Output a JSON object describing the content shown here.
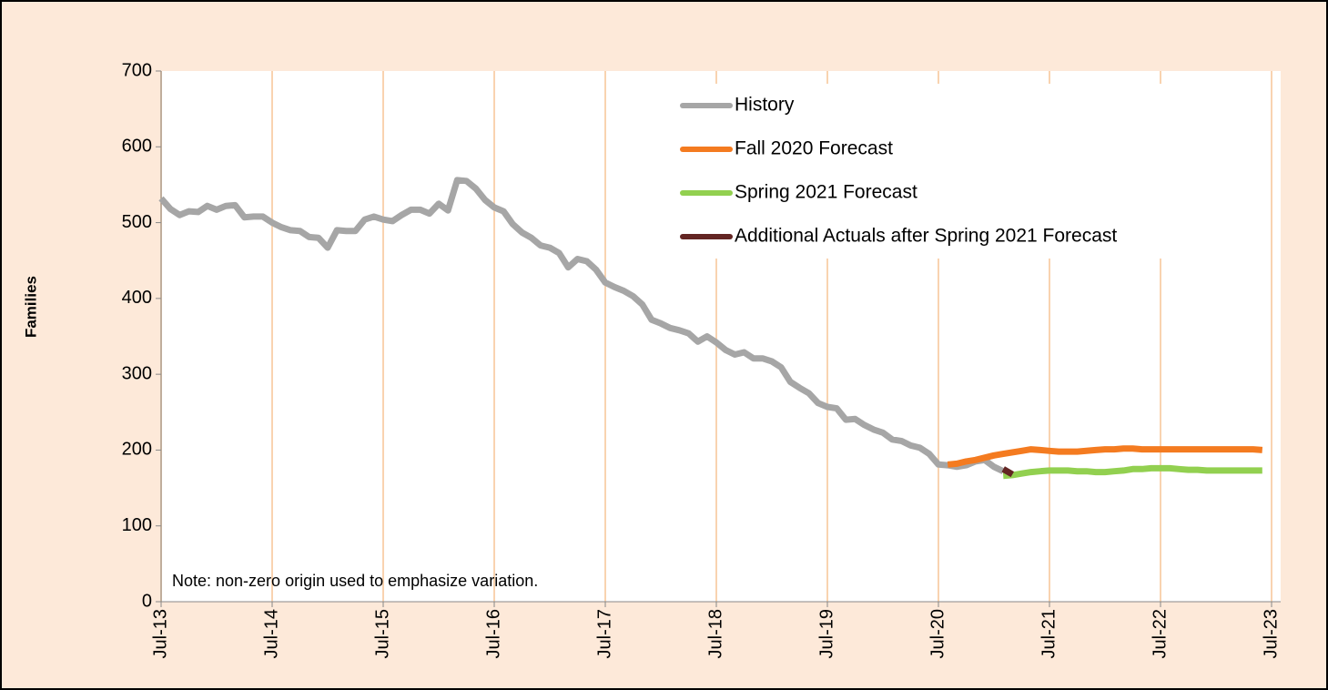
{
  "chart_data": {
    "type": "line",
    "y_label": "Families",
    "annotation": "Note: non-zero origin used to emphasize variation.",
    "categories": [
      "Jul-13",
      null,
      null,
      null,
      null,
      null,
      null,
      null,
      null,
      null,
      null,
      null,
      "Jul-14",
      null,
      null,
      null,
      null,
      null,
      null,
      null,
      null,
      null,
      null,
      null,
      "Jul-15",
      null,
      null,
      null,
      null,
      null,
      null,
      null,
      null,
      null,
      null,
      null,
      "Jul-16",
      null,
      null,
      null,
      null,
      null,
      null,
      null,
      null,
      null,
      null,
      null,
      "Jul-17",
      null,
      null,
      null,
      null,
      null,
      null,
      null,
      null,
      null,
      null,
      null,
      "Jul-18",
      null,
      null,
      null,
      null,
      null,
      null,
      null,
      null,
      null,
      null,
      null,
      "Jul-19",
      null,
      null,
      null,
      null,
      null,
      null,
      null,
      null,
      null,
      null,
      null,
      "Jul-20",
      null,
      null,
      null,
      null,
      null,
      null,
      null,
      null,
      null,
      null,
      null,
      "Jul-21",
      null,
      null,
      null,
      null,
      null,
      null,
      null,
      null,
      null,
      null,
      null,
      "Jul-22",
      null,
      null,
      null,
      null,
      null,
      null,
      null,
      null,
      null,
      null,
      null,
      "Jul-23"
    ],
    "ylim": [
      0,
      700
    ],
    "yticks": [
      0,
      100,
      200,
      300,
      400,
      500,
      600,
      700
    ],
    "grid": true,
    "series": [
      {
        "name": "History",
        "color": "#a6a6a6",
        "values": [
          532,
          518,
          510,
          515,
          514,
          522,
          517,
          522,
          523,
          507,
          508,
          508,
          500,
          494,
          490,
          489,
          481,
          480,
          467,
          490,
          489,
          489,
          504,
          508,
          504,
          502,
          510,
          517,
          517,
          512,
          525,
          516,
          556,
          555,
          545,
          530,
          520,
          515,
          498,
          487,
          480,
          470,
          467,
          460,
          441,
          452,
          449,
          438,
          421,
          415,
          410,
          403,
          392,
          372,
          367,
          361,
          358,
          354,
          343,
          350,
          342,
          332,
          326,
          329,
          321,
          321,
          317,
          309,
          290,
          282,
          275,
          262,
          257,
          255,
          240,
          241,
          233,
          227,
          223,
          214,
          212,
          206,
          203,
          195,
          181,
          180,
          178,
          180,
          185,
          187,
          178,
          172,
          null,
          null,
          null,
          null,
          null,
          null,
          null,
          null,
          null,
          null,
          null,
          null,
          null,
          null,
          null,
          null,
          null,
          null,
          null,
          null,
          null,
          null,
          null,
          null,
          null,
          null,
          null,
          null,
          null
        ]
      },
      {
        "name": "Fall 2020 Forecast",
        "color": "#f47b20",
        "values": [
          null,
          null,
          null,
          null,
          null,
          null,
          null,
          null,
          null,
          null,
          null,
          null,
          null,
          null,
          null,
          null,
          null,
          null,
          null,
          null,
          null,
          null,
          null,
          null,
          null,
          null,
          null,
          null,
          null,
          null,
          null,
          null,
          null,
          null,
          null,
          null,
          null,
          null,
          null,
          null,
          null,
          null,
          null,
          null,
          null,
          null,
          null,
          null,
          null,
          null,
          null,
          null,
          null,
          null,
          null,
          null,
          null,
          null,
          null,
          null,
          null,
          null,
          null,
          null,
          null,
          null,
          null,
          null,
          null,
          null,
          null,
          null,
          null,
          null,
          null,
          null,
          null,
          null,
          null,
          null,
          null,
          null,
          null,
          null,
          null,
          181,
          182,
          185,
          187,
          190,
          193,
          195,
          197,
          199,
          201,
          200,
          199,
          198,
          198,
          198,
          199,
          200,
          201,
          201,
          202,
          202,
          201,
          201,
          201,
          201,
          201,
          201,
          201,
          201,
          201,
          201,
          201,
          201,
          201,
          200,
          null
        ]
      },
      {
        "name": "Spring 2021 Forecast",
        "color": "#92d050",
        "values": [
          null,
          null,
          null,
          null,
          null,
          null,
          null,
          null,
          null,
          null,
          null,
          null,
          null,
          null,
          null,
          null,
          null,
          null,
          null,
          null,
          null,
          null,
          null,
          null,
          null,
          null,
          null,
          null,
          null,
          null,
          null,
          null,
          null,
          null,
          null,
          null,
          null,
          null,
          null,
          null,
          null,
          null,
          null,
          null,
          null,
          null,
          null,
          null,
          null,
          null,
          null,
          null,
          null,
          null,
          null,
          null,
          null,
          null,
          null,
          null,
          null,
          null,
          null,
          null,
          null,
          null,
          null,
          null,
          null,
          null,
          null,
          null,
          null,
          null,
          null,
          null,
          null,
          null,
          null,
          null,
          null,
          null,
          null,
          null,
          null,
          null,
          null,
          null,
          null,
          null,
          null,
          166,
          167,
          169,
          171,
          172,
          173,
          173,
          173,
          172,
          172,
          171,
          171,
          172,
          173,
          175,
          175,
          176,
          176,
          176,
          175,
          174,
          174,
          173,
          173,
          173,
          173,
          173,
          173,
          173,
          null
        ]
      },
      {
        "name": "Additional Actuals after Spring 2021 Forecast",
        "color": "#632523",
        "values": [
          null,
          null,
          null,
          null,
          null,
          null,
          null,
          null,
          null,
          null,
          null,
          null,
          null,
          null,
          null,
          null,
          null,
          null,
          null,
          null,
          null,
          null,
          null,
          null,
          null,
          null,
          null,
          null,
          null,
          null,
          null,
          null,
          null,
          null,
          null,
          null,
          null,
          null,
          null,
          null,
          null,
          null,
          null,
          null,
          null,
          null,
          null,
          null,
          null,
          null,
          null,
          null,
          null,
          null,
          null,
          null,
          null,
          null,
          null,
          null,
          null,
          null,
          null,
          null,
          null,
          null,
          null,
          null,
          null,
          null,
          null,
          null,
          null,
          null,
          null,
          null,
          null,
          null,
          null,
          null,
          null,
          null,
          null,
          null,
          null,
          null,
          null,
          null,
          null,
          null,
          null,
          175,
          168,
          null,
          null,
          null,
          null,
          null,
          null,
          null,
          null,
          null,
          null,
          null,
          null,
          null,
          null,
          null,
          null,
          null,
          null,
          null,
          null,
          null,
          null,
          null,
          null,
          null,
          null,
          null,
          null
        ]
      }
    ]
  }
}
